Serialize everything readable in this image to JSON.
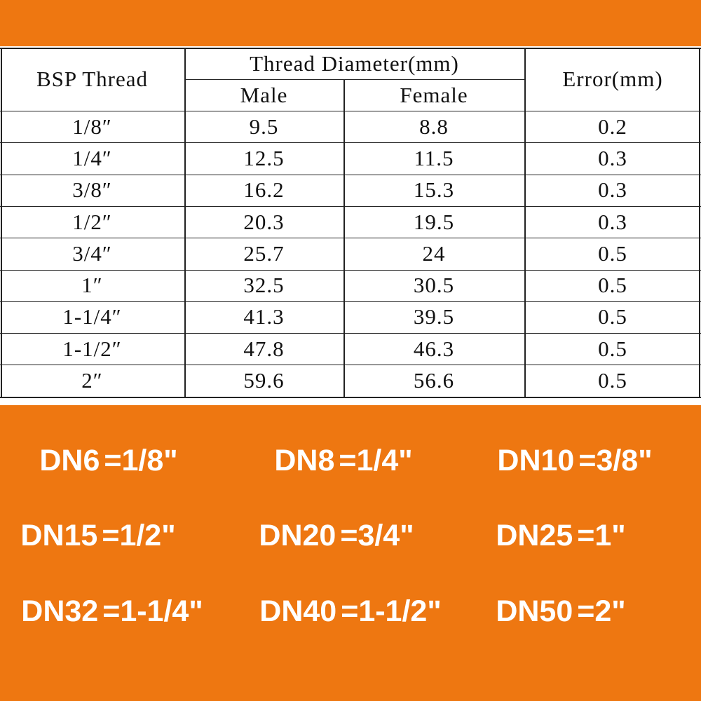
{
  "table": {
    "header": {
      "thread": "BSP Thread",
      "diameter": "Thread Diameter(mm)",
      "male": "Male",
      "female": "Female",
      "error": "Error(mm)"
    },
    "rows": [
      [
        "1/8″",
        "9.5",
        "8.8",
        "0.2"
      ],
      [
        "1/4″",
        "12.5",
        "11.5",
        "0.3"
      ],
      [
        "3/8″",
        "16.2",
        "15.3",
        "0.3"
      ],
      [
        "1/2″",
        "20.3",
        "19.5",
        "0.3"
      ],
      [
        "3/4″",
        "25.7",
        "24",
        "0.5"
      ],
      [
        "1″",
        "32.5",
        "30.5",
        "0.5"
      ],
      [
        "1-1/4″",
        "41.3",
        "39.5",
        "0.5"
      ],
      [
        "1-1/2″",
        "47.8",
        "46.3",
        "0.5"
      ],
      [
        "2″",
        "59.6",
        "56.6",
        "0.5"
      ]
    ]
  },
  "conversions": [
    [
      "DN6",
      "=1/8\""
    ],
    [
      "DN8",
      "=1/4\""
    ],
    [
      "DN10",
      "=3/8\""
    ],
    [
      "DN15",
      "=1/2\""
    ],
    [
      "DN20",
      "=3/4\""
    ],
    [
      "DN25",
      "=1\""
    ],
    [
      "DN32",
      "=1-1/4\""
    ],
    [
      "DN40",
      "=1-1/2\""
    ],
    [
      "DN50",
      "=2\""
    ]
  ]
}
